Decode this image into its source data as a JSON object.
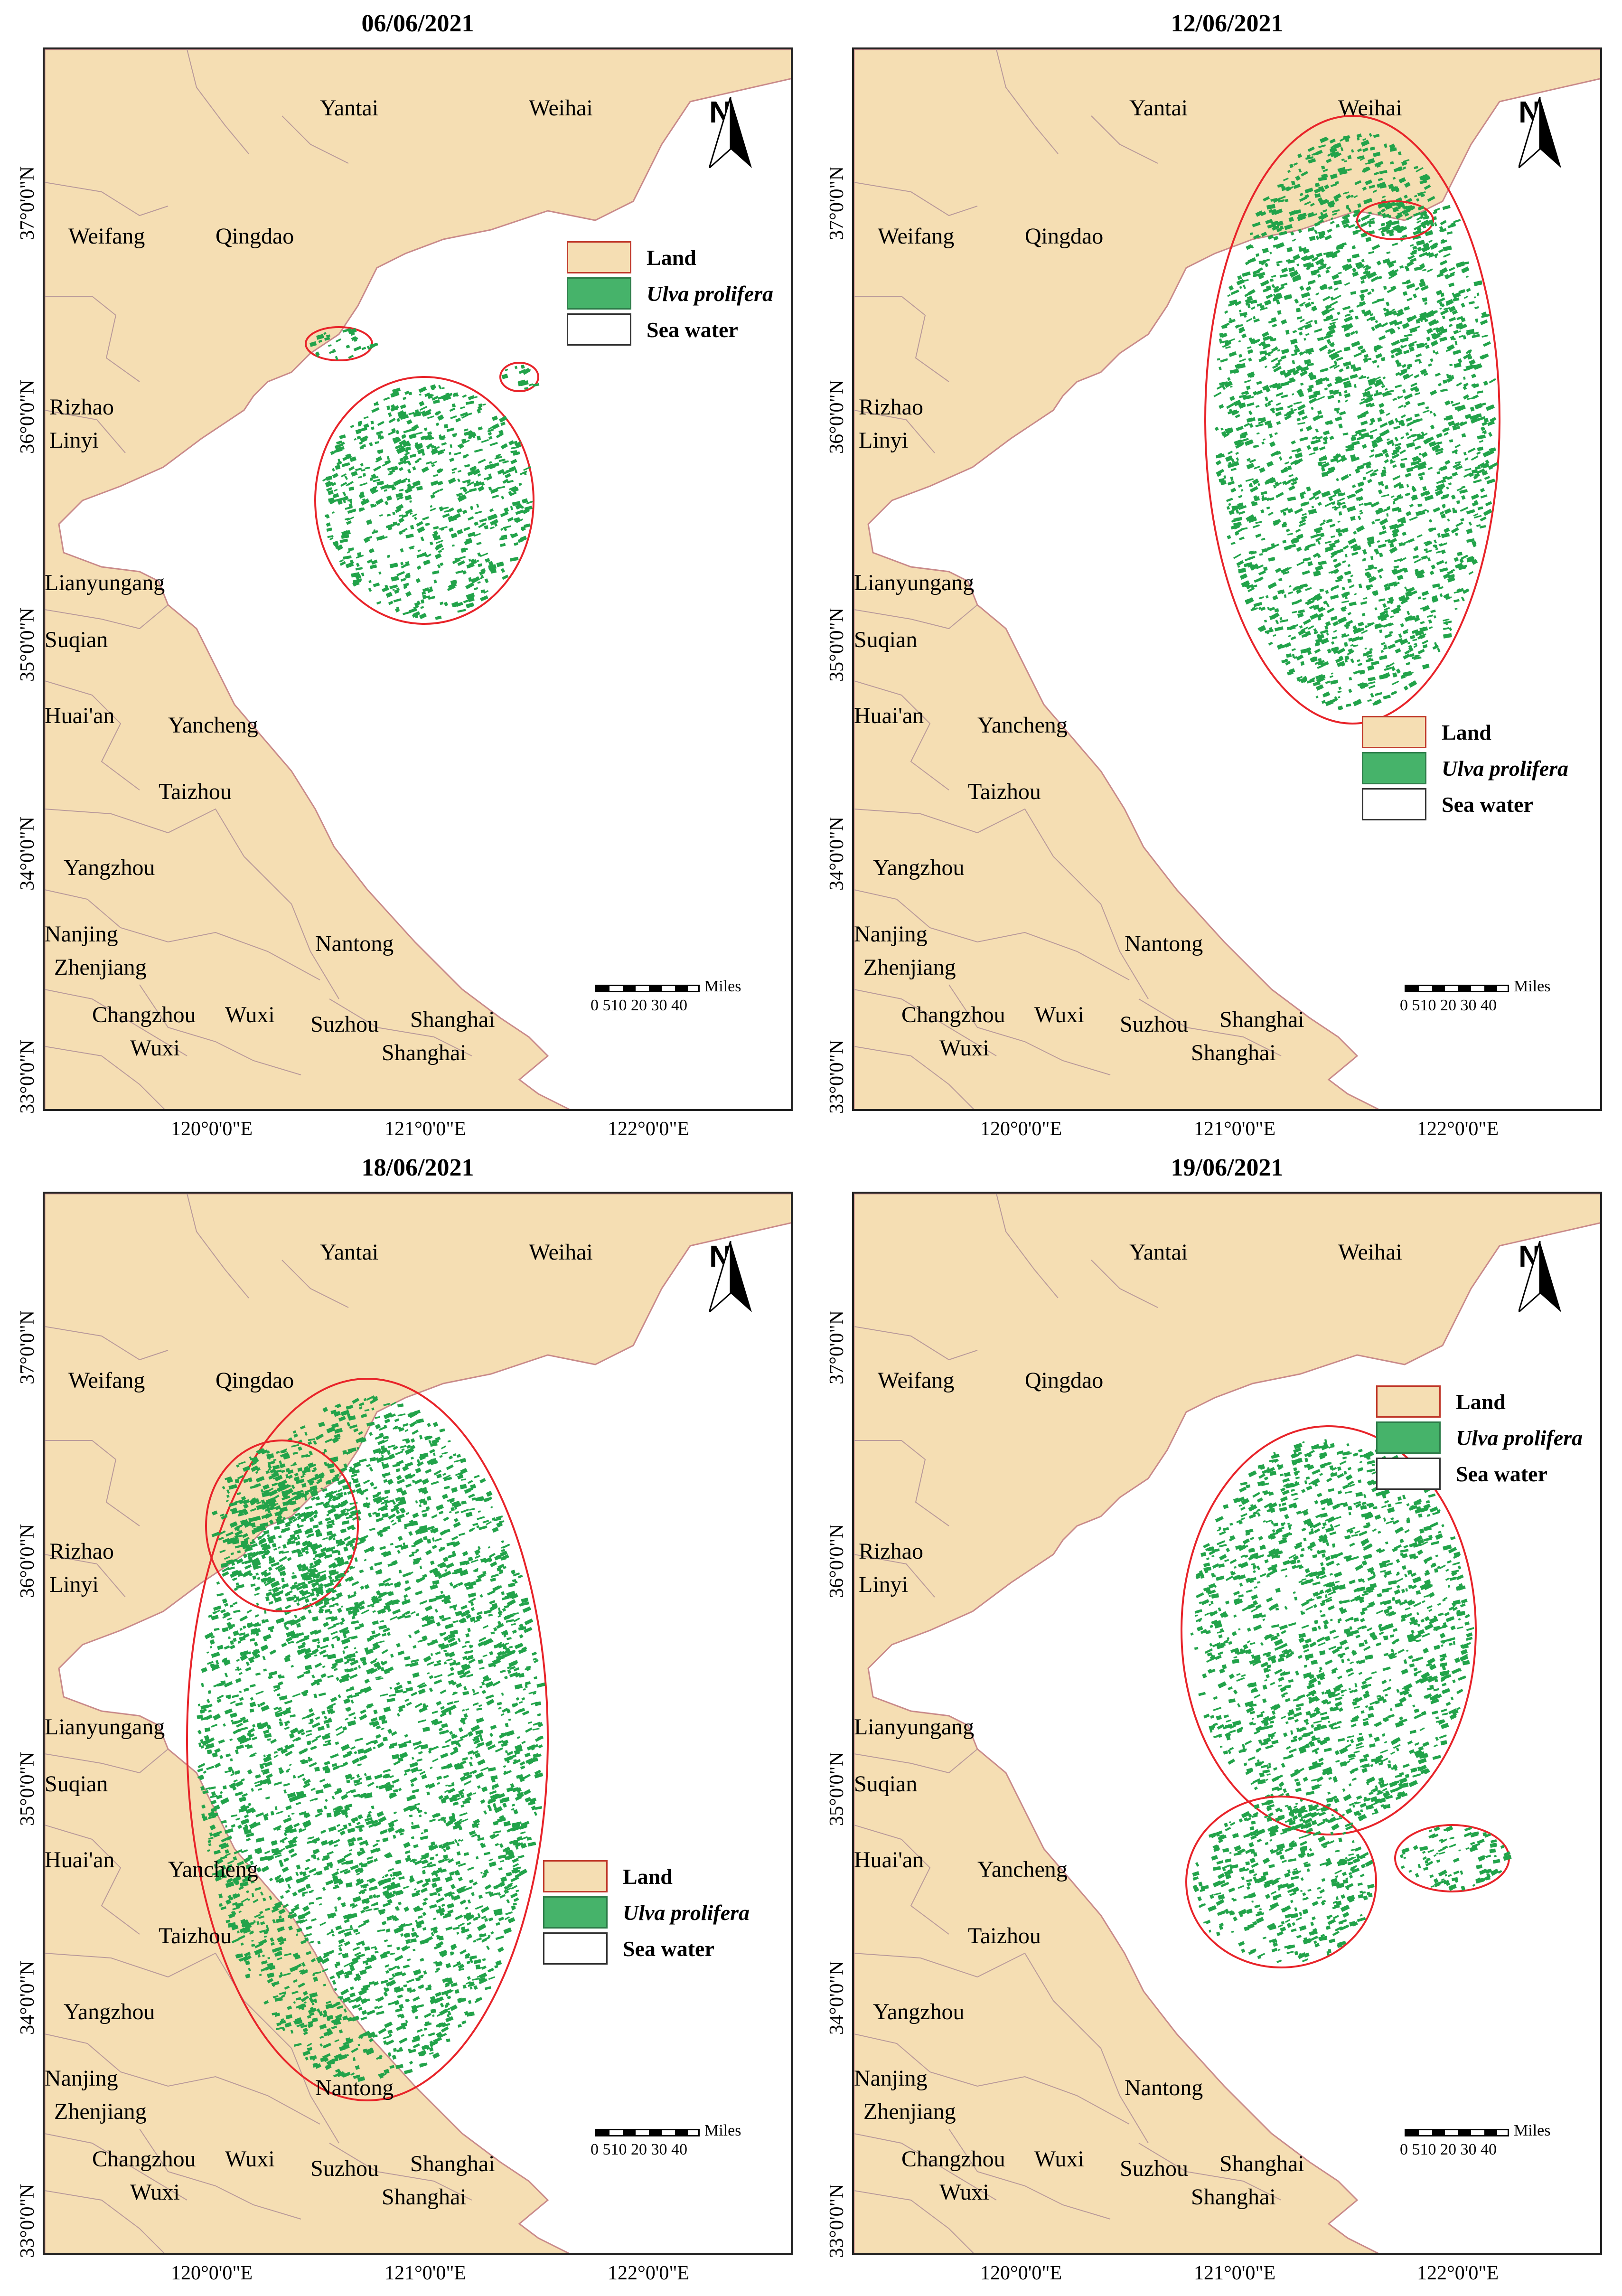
{
  "panels": [
    {
      "id": "p1",
      "title": "06/06/2021",
      "legend_pos": "top-right"
    },
    {
      "id": "p2",
      "title": "12/06/2021",
      "legend_pos": "bottom-right"
    },
    {
      "id": "p3",
      "title": "18/06/2021",
      "legend_pos": "bottom-right"
    },
    {
      "id": "p4",
      "title": "19/06/2021",
      "legend_pos": "top-right"
    }
  ],
  "legend": {
    "land": "Land",
    "ulva": "Ulva prolifera",
    "sea": "Sea water"
  },
  "north_label": "N",
  "scale": {
    "unit": "Miles",
    "ticks": "0 510 20 30 40"
  },
  "lat_labels": [
    "37°0'0\"N",
    "36°0'0\"N",
    "35°0'0\"N",
    "34°0'0\"N",
    "33°0'0\"N"
  ],
  "lon_labels": [
    "120°0'0\"E",
    "121°0'0\"E",
    "122°0'0\"E"
  ],
  "cities": {
    "yantai": "Yantai",
    "weihai": "Weihai",
    "weifang": "Weifang",
    "qingdao": "Qingdao",
    "rizhao": "Rizhao",
    "linyi": "Linyi",
    "lianyungang": "Lianyungang",
    "suqian": "Suqian",
    "huaian": "Huai'an",
    "yancheng": "Yancheng",
    "taizhou": "Taizhou",
    "yangzhou": "Yangzhou",
    "nanjing": "Nanjing",
    "zhenjiang": "Zhenjiang",
    "nantong": "Nantong",
    "changzhou": "Changzhou",
    "wuxi": "Wuxi",
    "wuxi2": "Wuxi",
    "suzhou": "Suzhou",
    "shanghai": "Shanghai",
    "shanghai2": "Shanghai"
  },
  "colors": {
    "land": "#f5deb3",
    "land_border": "#c98a8a",
    "ulva": "#22a34a",
    "ulva_outline": "#e8242a",
    "sea": "#ffffff"
  }
}
